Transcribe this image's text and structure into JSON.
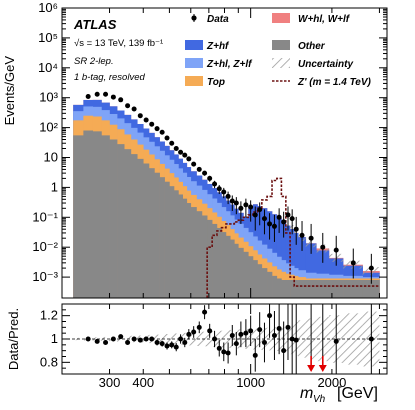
{
  "chart_data": [
    {
      "type": "histogram",
      "panel": "main",
      "title": "ATLAS",
      "annotations": [
        "√s = 13 TeV, 139 fb⁻¹",
        "SR 2-lep.",
        "1 b-tag, resolved"
      ],
      "ylabel": "Events/GeV",
      "yscale": "log",
      "ylim": [
        0.0002,
        1000000
      ],
      "xscale": "log",
      "xlim": [
        200,
        3200
      ],
      "y_tick_labels": [
        "10⁻³",
        "10⁻²",
        "10⁻¹",
        "1",
        "10",
        "10²",
        "10³",
        "10⁴",
        "10⁵",
        "10⁶"
      ],
      "bin_edges": [
        220,
        240,
        260,
        280,
        300,
        320,
        340,
        360,
        380,
        400,
        420,
        440,
        460,
        480,
        500,
        520,
        540,
        560,
        580,
        600,
        630,
        660,
        690,
        720,
        750,
        780,
        810,
        840,
        870,
        900,
        940,
        980,
        1020,
        1060,
        1100,
        1150,
        1200,
        1250,
        1300,
        1350,
        1400,
        1450,
        1500,
        1600,
        1750,
        1950,
        2200,
        2600,
        3000
      ],
      "series": [
        {
          "name": "Other",
          "color": "#888888",
          "values": [
            55,
            80,
            75,
            55,
            40,
            28,
            19,
            13,
            9,
            6.3,
            4.4,
            3.1,
            2.2,
            1.55,
            1.1,
            0.8,
            0.58,
            0.42,
            0.3,
            0.22,
            0.16,
            0.115,
            0.082,
            0.06,
            0.044,
            0.032,
            0.024,
            0.018,
            0.013,
            0.0095,
            0.007,
            0.005,
            0.0037,
            0.0027,
            0.002,
            0.0015,
            0.0011,
            0.0009,
            0.0008,
            0.0008,
            0.0008,
            0.0008,
            0.0008,
            0.0008,
            0.0008,
            0.0008,
            0.0008,
            0.0008
          ]
        },
        {
          "name": "Top",
          "color": "#F5AB55",
          "values": [
            120,
            170,
            160,
            120,
            85,
            60,
            40,
            27,
            18,
            12,
            8.2,
            5.6,
            3.9,
            2.7,
            1.9,
            1.35,
            0.95,
            0.68,
            0.48,
            0.34,
            0.24,
            0.17,
            0.12,
            0.085,
            0.06,
            0.043,
            0.031,
            0.022,
            0.016,
            0.0115,
            0.0082,
            0.0058,
            0.0042,
            0.003,
            0.0022,
            0.0016,
            0.0012,
            0.0009,
            0.0007,
            0.0005,
            0.0004,
            0.0003,
            0.0002,
            0.0001,
            0.0001,
            0.0001,
            0.0001,
            0.0001
          ]
        },
        {
          "name": "Z+hl, Z+lf",
          "color": "#7FA4F7",
          "values": [
            180,
            260,
            260,
            210,
            160,
            115,
            82,
            58,
            41,
            29,
            21,
            15,
            10.7,
            7.6,
            5.4,
            3.9,
            2.8,
            2.0,
            1.45,
            1.05,
            0.75,
            0.54,
            0.39,
            0.28,
            0.2,
            0.145,
            0.105,
            0.076,
            0.055,
            0.04,
            0.029,
            0.021,
            0.015,
            0.011,
            0.008,
            0.0058,
            0.0042,
            0.003,
            0.0022,
            0.0016,
            0.0012,
            0.0009,
            0.0007,
            0.0005,
            0.0004,
            0.0003,
            0.0002,
            0.0001
          ]
        },
        {
          "name": "Z+hf",
          "color": "#4169E1",
          "values": [
            220,
            330,
            350,
            300,
            230,
            170,
            125,
            90,
            64,
            46,
            33,
            24,
            17.5,
            12.6,
            9.1,
            6.6,
            4.8,
            3.5,
            2.55,
            1.85,
            1.35,
            0.98,
            0.71,
            0.52,
            0.38,
            0.28,
            0.2,
            0.15,
            0.11,
            0.08,
            0.06,
            0.2,
            0.25,
            0.22,
            0.19,
            0.15,
            0.12,
            0.09,
            0.07,
            0.05,
            0.038,
            0.028,
            0.02,
            0.012,
            0.0065,
            0.003,
            0.0013,
            0.0004
          ]
        },
        {
          "name": "W+hl, W+lf",
          "color": "#F08080",
          "values": [
            1,
            1,
            1,
            1,
            0.8,
            0.6,
            0.45,
            0.3,
            0.2,
            0.14,
            0.1,
            0.07,
            0.05,
            0.035,
            0.025,
            0.018,
            0.013,
            0.009,
            0.0065,
            0.0047,
            0.0034,
            0.0025,
            0.0018,
            0.0013,
            0.001,
            0.0008,
            0.0006,
            0.0004,
            0.0003,
            0.0002,
            0.0002,
            0.0002,
            0.0002,
            0.0002,
            0.0002,
            0.0002,
            0.0002,
            0.0002,
            0.0002,
            0.0002,
            0.0002,
            0.0002,
            0.0002,
            0.0002,
            0.0013,
            0.0002,
            0.0002,
            0.0002
          ]
        }
      ],
      "signal": {
        "name": "Z' (m = 1.4 TeV)",
        "color": "#6B1010",
        "values": [
          0,
          0,
          0,
          0,
          0,
          0,
          0,
          0,
          0,
          0,
          0,
          0,
          0,
          0,
          0,
          0,
          0,
          0,
          0,
          0,
          0,
          0,
          0.01,
          0.025,
          0.035,
          0.045,
          0.06,
          0.06,
          0.07,
          0.08,
          0.1,
          0.12,
          0.15,
          0.2,
          0.38,
          0.5,
          1.7,
          2.0,
          0.5,
          0.03,
          0.001,
          0.0005,
          0.0005,
          0.0005,
          0.0005,
          0.0005,
          0.0005,
          0.0005
        ]
      },
      "data": {
        "name": "Data",
        "x": [
          250,
          270,
          290,
          310,
          330,
          350,
          370,
          390,
          410,
          430,
          450,
          470,
          490,
          510,
          530,
          550,
          570,
          590,
          615,
          645,
          675,
          705,
          735,
          765,
          795,
          825,
          855,
          885,
          920,
          960,
          1000,
          1040,
          1080,
          1125,
          1175,
          1225,
          1275,
          1325,
          1375,
          1425,
          1475,
          1550,
          1675,
          1850,
          2075,
          2400,
          2800
        ],
        "y": [
          1100,
          1300,
          1300,
          1050,
          850,
          540,
          420,
          250,
          180,
          130,
          92,
          70,
          45,
          30,
          20,
          15,
          12,
          9,
          6,
          4,
          3,
          2,
          1.3,
          0.9,
          0.7,
          0.5,
          0.35,
          0.3,
          0.2,
          0.26,
          0.22,
          0.12,
          0.18,
          0.09,
          0.06,
          0.05,
          0.1,
          0.07,
          0.12,
          0.09,
          0.04,
          0.025,
          0.02,
          0.01,
          0.008,
          0.003,
          0.002
        ]
      },
      "uncertainty_name": "Uncertainty",
      "legend": [
        "Data",
        "W+hl, W+lf",
        "Z+hf",
        "Other",
        "Z+hl, Z+lf",
        "Uncertainty",
        "Top",
        "Z' (m = 1.4 TeV)"
      ],
      "legend_position": "top-right"
    },
    {
      "type": "scatter",
      "panel": "ratio",
      "ylabel": "Data/Pred.",
      "ylim": [
        0.7,
        1.3
      ],
      "y_tick_labels": [
        "0.8",
        "1",
        "1.2"
      ],
      "xlabel": "m_Vh [GeV]",
      "xlabel_main": "m",
      "xlabel_sub": "Vh",
      "xlabel_unit": "[GeV]",
      "x_tick_labels": [
        "300",
        "400",
        "1000",
        "2000"
      ],
      "x_tick_values": [
        300,
        400,
        1000,
        2000
      ],
      "x": [
        250,
        270,
        290,
        310,
        330,
        350,
        370,
        390,
        410,
        430,
        450,
        470,
        490,
        510,
        530,
        550,
        570,
        590,
        615,
        645,
        675,
        705,
        735,
        765,
        795,
        825,
        855,
        885,
        920,
        960,
        1000,
        1040,
        1080,
        1125,
        1175,
        1225,
        1275,
        1325,
        1375,
        1425,
        1475,
        1550,
        1675,
        1850,
        2075,
        2400,
        2800
      ],
      "y": [
        1.0,
        0.98,
        0.97,
        1.0,
        1.02,
        0.97,
        1.0,
        0.99,
        1.0,
        1.0,
        0.97,
        0.96,
        0.94,
        0.95,
        0.93,
        1.0,
        0.97,
        1.04,
        1.06,
        1.1,
        1.23,
        1.07,
        1.0,
        0.92,
        0.89,
        0.88,
        1.03,
        0.96,
        1.04,
        1.05,
        1.07,
        0.86,
        1.08,
        0.97,
        1.2,
        1.03,
        1.09,
        0.9,
        1.1,
        1.0,
        0.99,
        null,
        null,
        null,
        0.98,
        null,
        1.0
      ],
      "err": [
        0.01,
        0.01,
        0.01,
        0.01,
        0.01,
        0.015,
        0.015,
        0.02,
        0.02,
        0.02,
        0.025,
        0.025,
        0.03,
        0.03,
        0.035,
        0.04,
        0.04,
        0.045,
        0.05,
        0.05,
        0.06,
        0.06,
        0.07,
        0.07,
        0.08,
        0.09,
        0.09,
        0.1,
        0.11,
        0.12,
        0.13,
        0.14,
        0.15,
        0.17,
        0.19,
        0.21,
        0.22,
        0.25,
        0.28,
        0.3,
        0.32,
        0.35,
        0.4,
        0.45,
        0.5,
        0.55,
        0.6
      ],
      "offscale_low_x": [
        1675,
        1850
      ]
    }
  ]
}
